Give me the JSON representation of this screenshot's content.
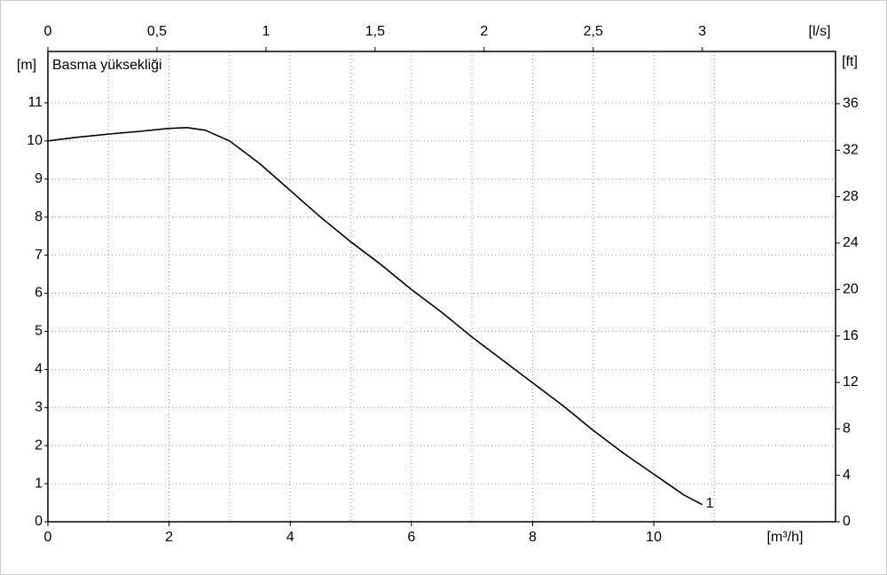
{
  "chart_data": {
    "type": "line",
    "y_label": "Basma yüksekliği",
    "y_unit": "[m]",
    "y2_unit": "[ft]",
    "x_unit": "[m³/h]",
    "x2_unit": "[l/s]",
    "x": [
      0,
      0.5,
      1,
      1.5,
      2,
      2.3,
      2.6,
      3,
      3.5,
      4,
      4.5,
      5,
      5.5,
      6,
      6.5,
      7,
      7.5,
      8,
      8.5,
      9,
      9.5,
      10,
      10.5,
      10.8
    ],
    "series": [
      {
        "name": "1",
        "color": "#000000",
        "values": [
          10.0,
          10.1,
          10.18,
          10.25,
          10.33,
          10.35,
          10.28,
          10.0,
          9.4,
          8.7,
          8.0,
          7.35,
          6.75,
          6.1,
          5.5,
          4.85,
          4.25,
          3.65,
          3.05,
          2.4,
          1.8,
          1.25,
          0.7,
          0.45
        ]
      }
    ],
    "xlim": [
      0,
      13
    ],
    "xticks": [
      0,
      2,
      4,
      6,
      8,
      10
    ],
    "ylim": [
      0,
      12.35
    ],
    "yticks": [
      0,
      1,
      2,
      3,
      4,
      5,
      6,
      7,
      8,
      9,
      10,
      11
    ],
    "y2lim": [
      0,
      40.5
    ],
    "y2ticks": [
      0,
      4,
      8,
      12,
      16,
      20,
      24,
      28,
      32,
      36
    ],
    "x2lim": [
      0,
      3.611
    ],
    "x2ticks": [
      0,
      {
        "value": 0.5,
        "label": "0,5"
      },
      1,
      {
        "value": 1.5,
        "label": "1,5"
      },
      2,
      {
        "value": 2.5,
        "label": "2,5"
      },
      3
    ],
    "grid": true
  }
}
